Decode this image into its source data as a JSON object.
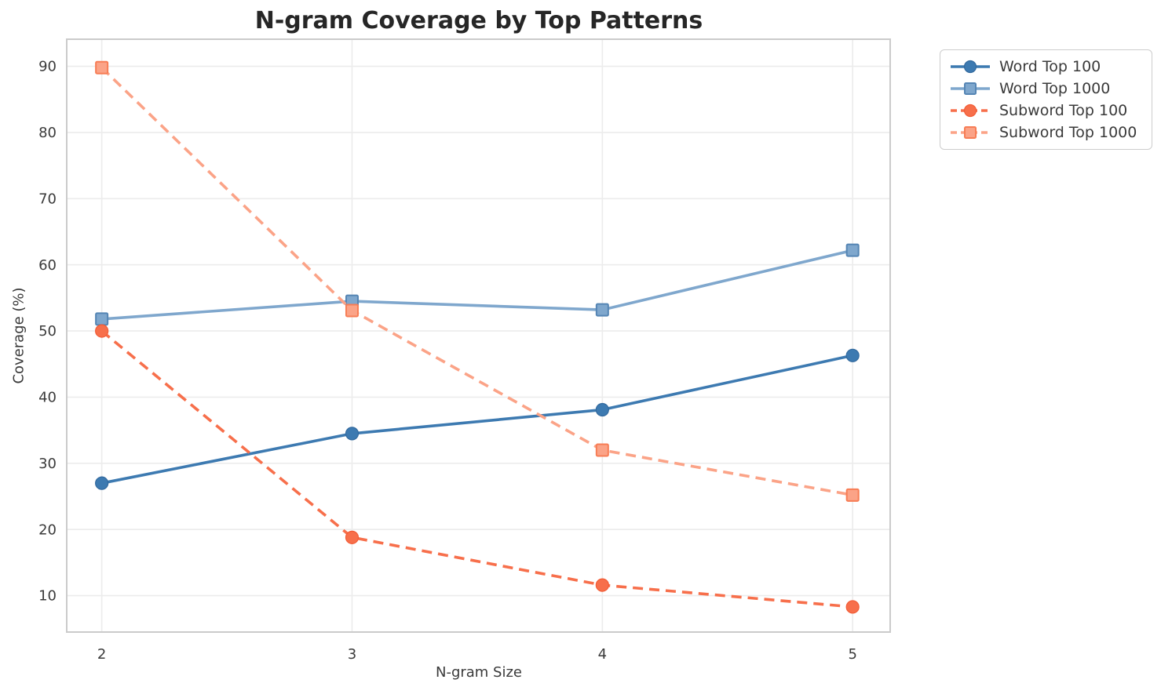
{
  "chart_data": {
    "type": "line",
    "title": "N-gram Coverage by Top Patterns",
    "xlabel": "N-gram Size",
    "ylabel": "Coverage (%)",
    "x": [
      2,
      3,
      4,
      5
    ],
    "xticks": [
      "2",
      "3",
      "4",
      "5"
    ],
    "yticks": [
      10,
      20,
      30,
      40,
      50,
      60,
      70,
      80,
      90
    ],
    "xlim": [
      1.86,
      5.15
    ],
    "ylim": [
      4.5,
      94.1
    ],
    "grid": true,
    "legend_position": "outside-upper-right",
    "series": [
      {
        "name": "Word Top 100",
        "values": [
          27.0,
          34.5,
          38.1,
          46.3
        ],
        "color": "#3d7ab1",
        "marker_edge": "#32699e",
        "marker": "circle",
        "line_style": "solid"
      },
      {
        "name": "Word Top 1000",
        "values": [
          51.8,
          54.5,
          53.2,
          62.2
        ],
        "color": "#7fa7cd",
        "marker_edge": "#5585b4",
        "marker": "square",
        "line_style": "solid"
      },
      {
        "name": "Subword Top 100",
        "values": [
          50.0,
          18.8,
          11.6,
          8.3
        ],
        "color": "#f76f4b",
        "marker_edge": "#f25c36",
        "marker": "circle",
        "line_style": "dashed"
      },
      {
        "name": "Subword Top 1000",
        "values": [
          89.8,
          53.1,
          32.0,
          25.2
        ],
        "color": "#fba387",
        "marker_edge": "#f77d55",
        "marker": "square",
        "line_style": "dashed"
      }
    ],
    "colors": {
      "grid": "#ececec",
      "frame": "#cbcbcb",
      "title_text": "#262626",
      "tick_text": "#3a3a3a"
    }
  }
}
